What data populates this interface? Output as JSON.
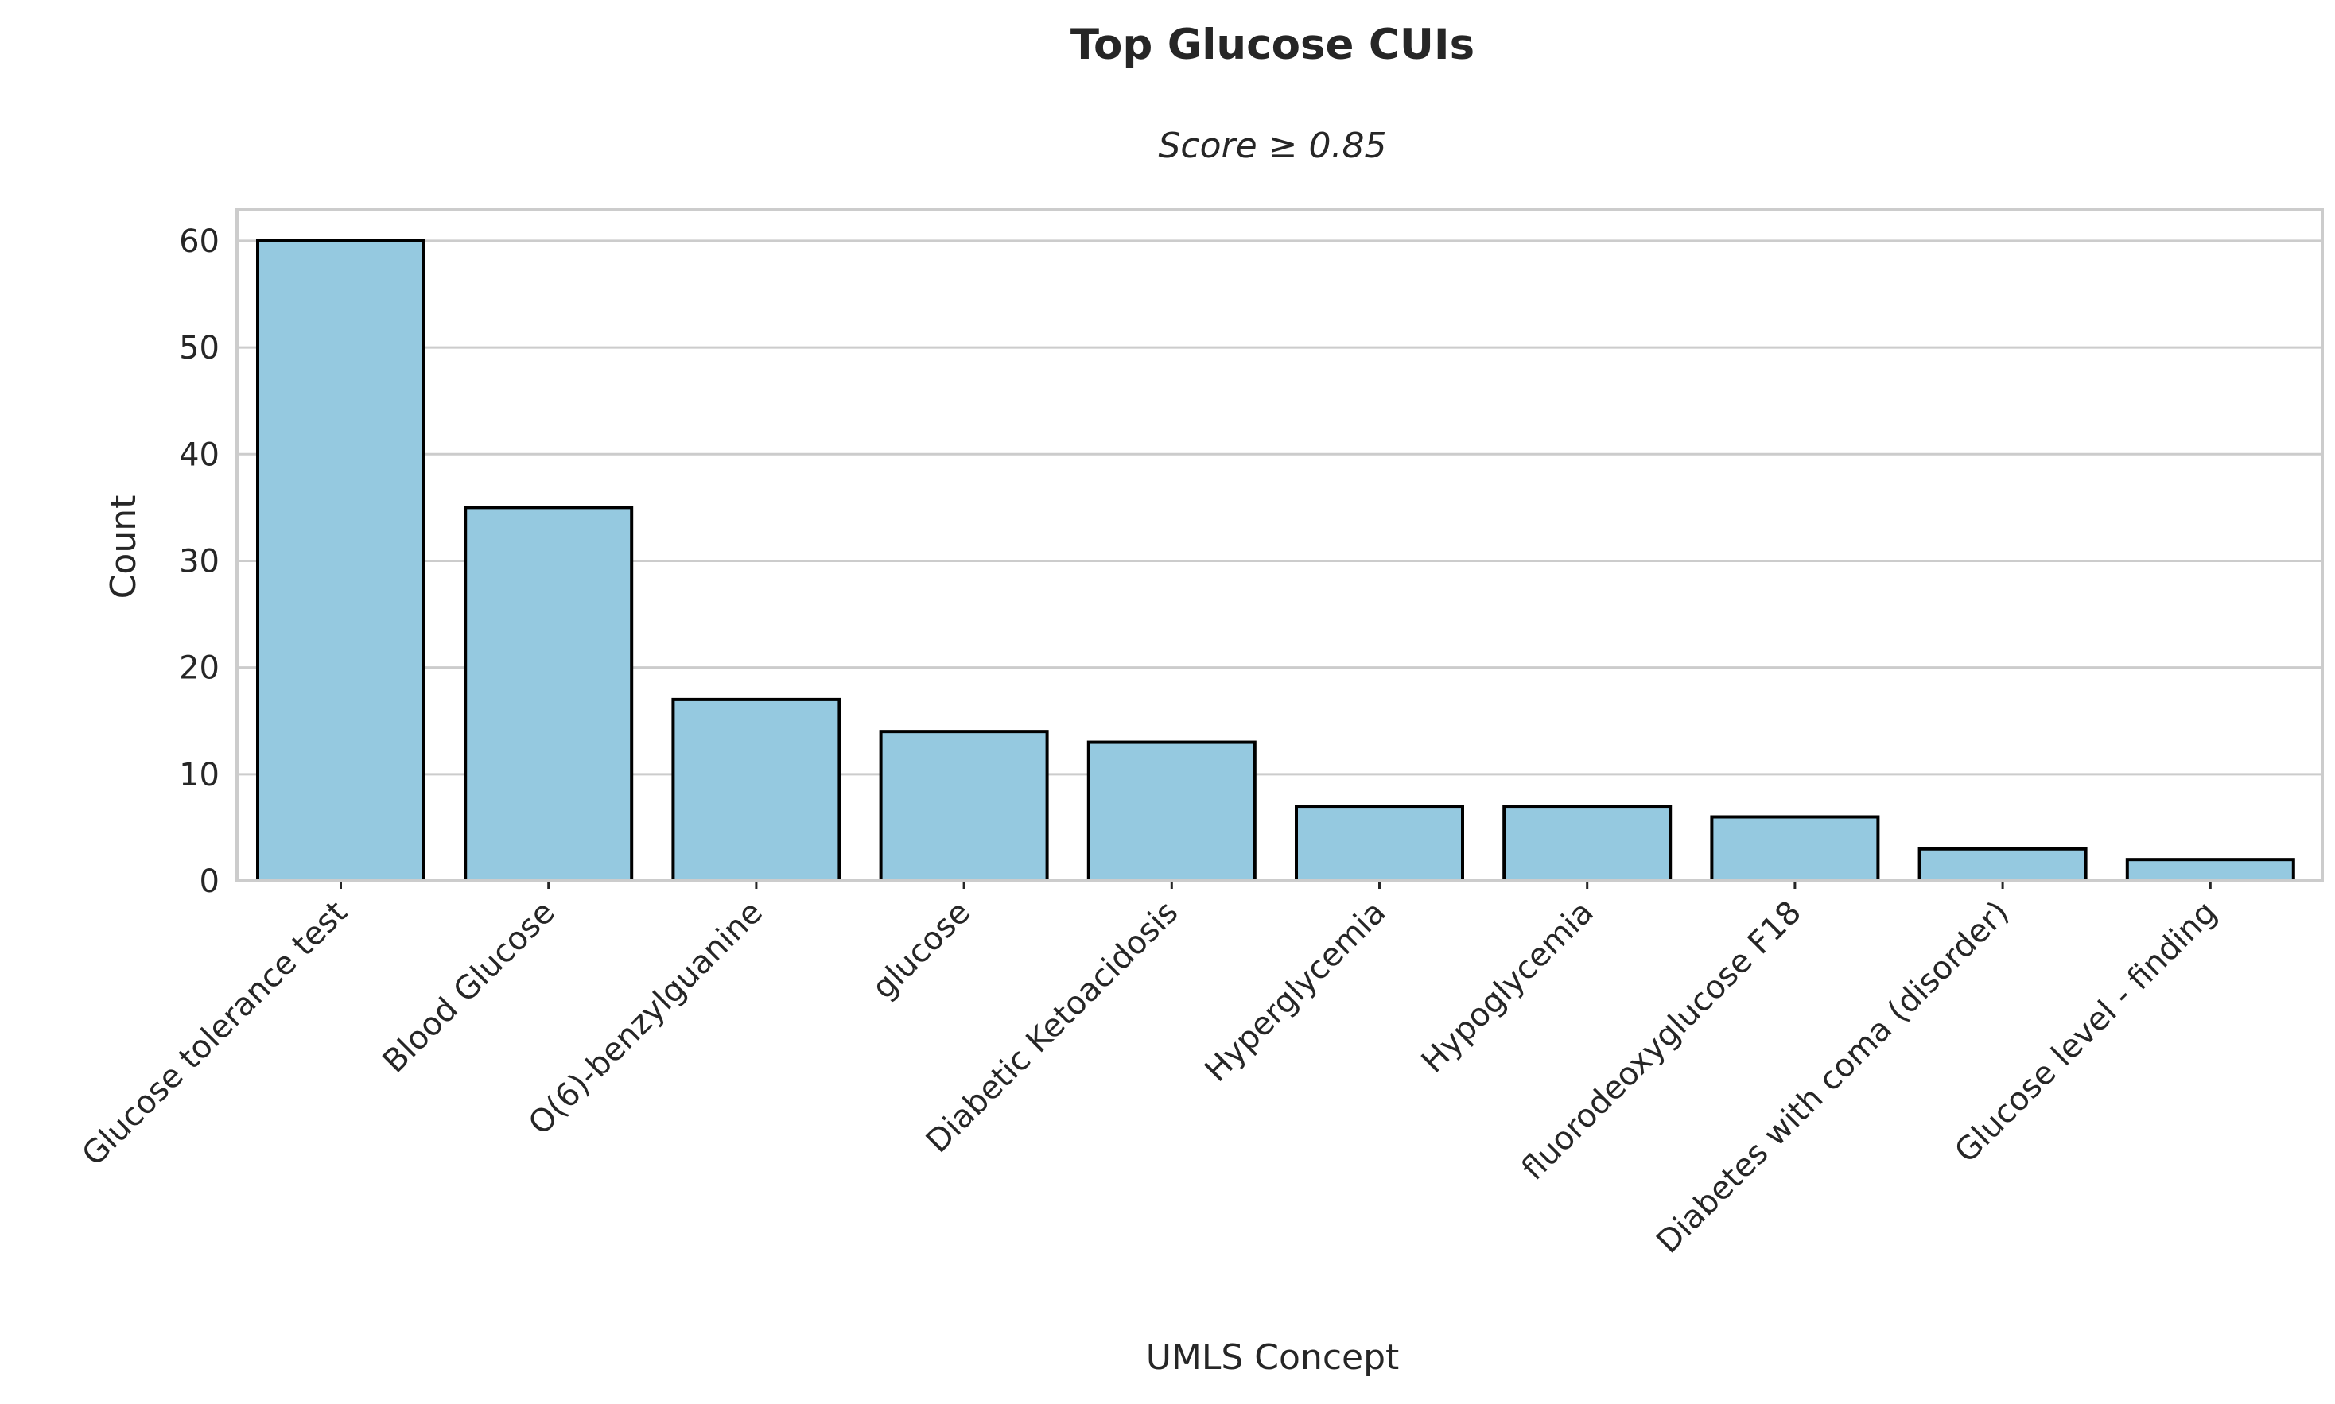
{
  "chart_data": {
    "type": "bar",
    "title": "Top Glucose CUIs",
    "subtitle": "Score ≥ 0.85",
    "xlabel": "UMLS Concept",
    "ylabel": "Count",
    "categories": [
      "Glucose tolerance test",
      "Blood Glucose",
      "O(6)-benzylguanine",
      "glucose",
      "Diabetic Ketoacidosis",
      "Hyperglycemia",
      "Hypoglycemia",
      "fluorodeoxyglucose F18",
      "Diabetes with coma (disorder)",
      "Glucose level - finding"
    ],
    "values": [
      60,
      35,
      17,
      14,
      13,
      7,
      7,
      6,
      3,
      2
    ],
    "yticks": [
      "0",
      "10",
      "20",
      "30",
      "40",
      "50",
      "60"
    ],
    "ylim": [
      0,
      62.9
    ],
    "grid": "horizontal",
    "legend": "none",
    "colors": {
      "bar_fill": "#95c9e0",
      "bar_edge": "#000000",
      "grid": "#cccccc",
      "text": "#262626"
    }
  }
}
